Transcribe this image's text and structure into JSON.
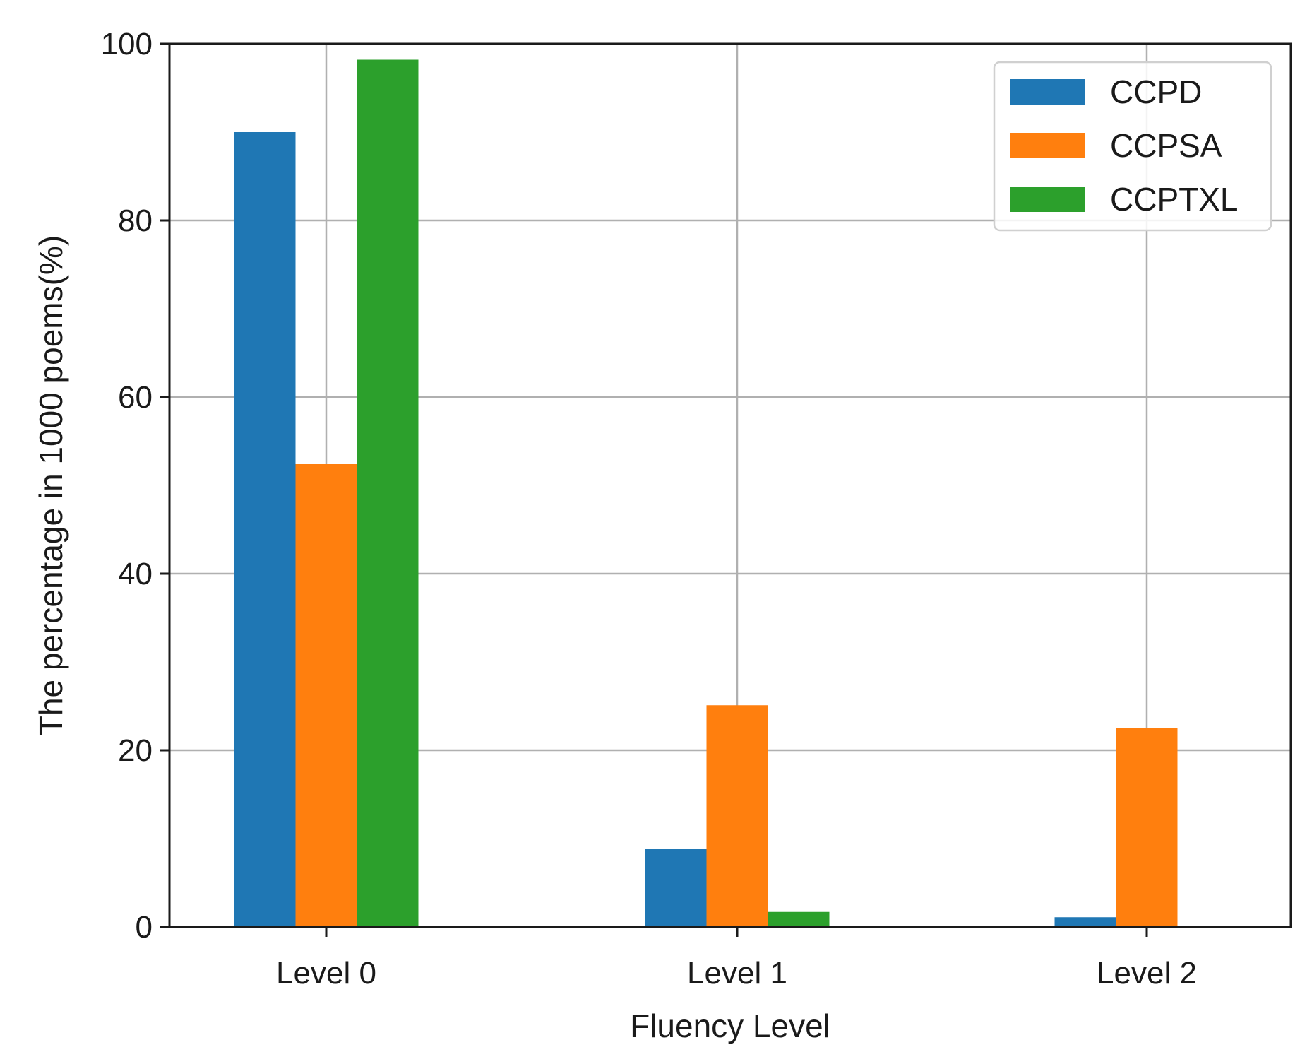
{
  "chart_data": {
    "type": "bar",
    "title": "",
    "xlabel": "Fluency Level",
    "ylabel": "The percentage in 1000 poems(%)",
    "categories": [
      "Level 0",
      "Level 1",
      "Level 2"
    ],
    "series": [
      {
        "name": "CCPD",
        "color": "#1f77b4",
        "values": [
          90.0,
          8.8,
          1.1
        ]
      },
      {
        "name": "CCPSA",
        "color": "#ff7f0e",
        "values": [
          52.4,
          25.1,
          22.5
        ]
      },
      {
        "name": "CCPTXL",
        "color": "#2ca02c",
        "values": [
          98.2,
          1.7,
          0.0
        ]
      }
    ],
    "ylim": [
      0,
      100
    ],
    "yticks": [
      "0",
      "20",
      "40",
      "60",
      "80",
      "100"
    ],
    "grid": true,
    "legend_position": "top-right"
  }
}
